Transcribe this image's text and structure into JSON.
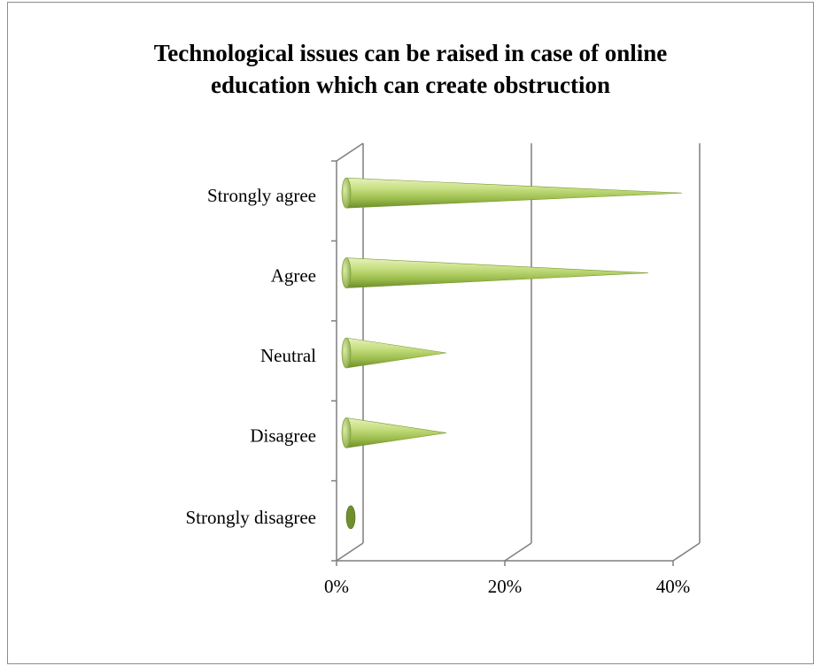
{
  "chart_data": {
    "type": "bar",
    "style": "3d-cone",
    "orientation": "horizontal",
    "title": "Technological issues can be raised in case of online education which can create obstruction",
    "title_lines": [
      "Technological issues can be raised in case of online",
      "education which can create obstruction"
    ],
    "categories": [
      "Strongly agree",
      "Agree",
      "Neutral",
      "Disagree",
      "Strongly disagree"
    ],
    "values": [
      40,
      36,
      12,
      12,
      0
    ],
    "value_unit": "%",
    "xlim": [
      0,
      40
    ],
    "xticks": [
      0,
      20,
      40
    ],
    "xtick_labels": [
      "0%",
      "20%",
      "40%"
    ],
    "xlabel": "",
    "ylabel": "",
    "grid": true,
    "colors": {
      "cone_light": "#e2f0b4",
      "cone_mid": "#a6c85a",
      "cone_dark": "#6f8f2e",
      "wall": "#7f7f7f"
    }
  }
}
